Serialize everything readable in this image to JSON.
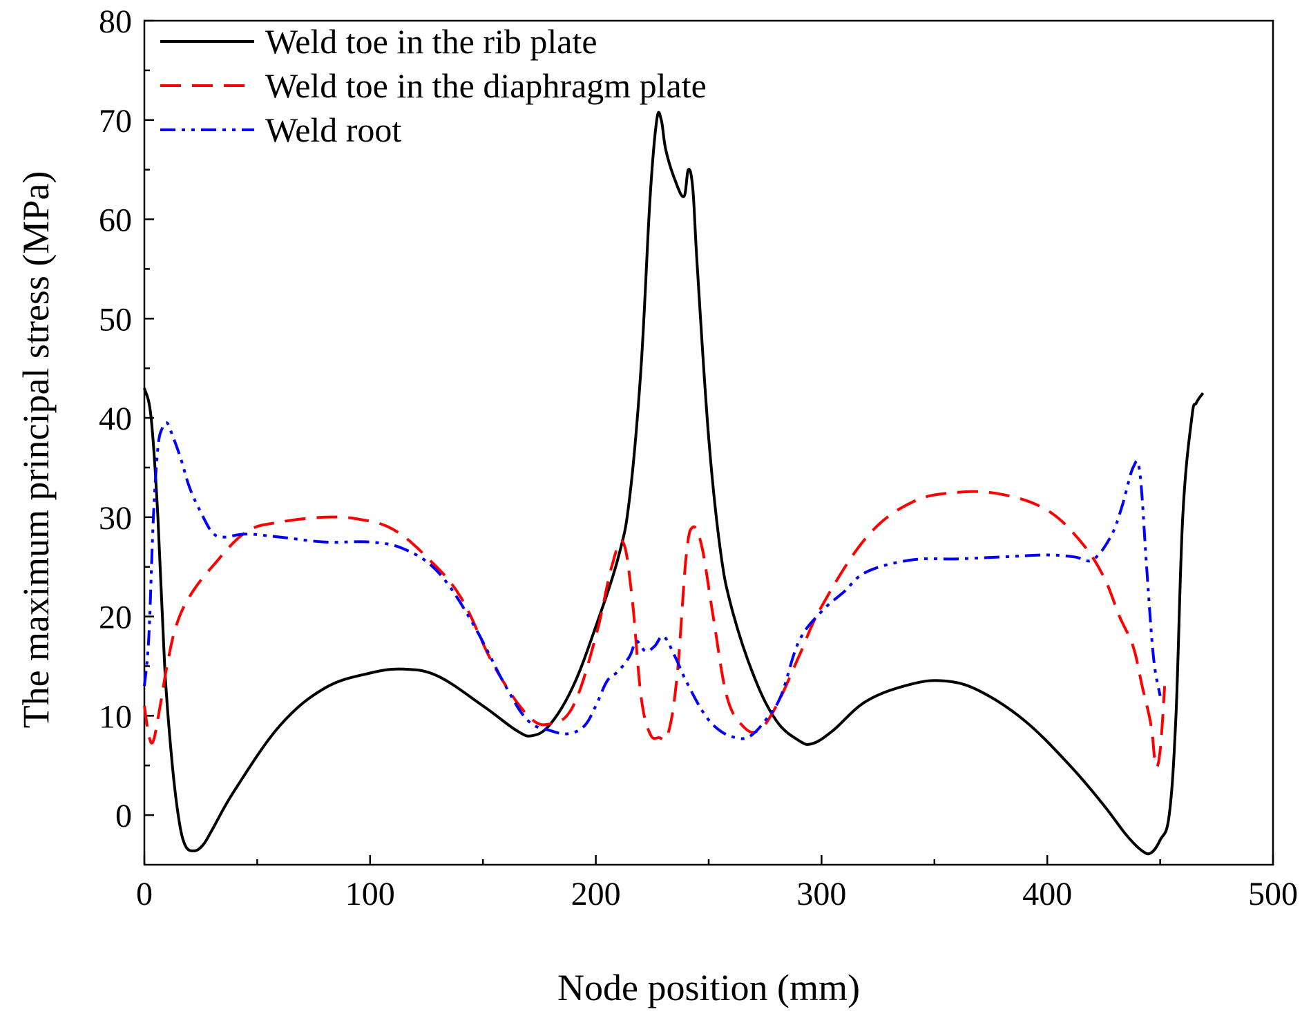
{
  "chart_data": {
    "type": "line",
    "title": "",
    "xlabel": "Node position (mm)",
    "ylabel": "The  maximum principal stress (MPa)",
    "xlim": [
      0,
      500
    ],
    "ylim": [
      -5,
      80
    ],
    "x_ticks": [
      0,
      100,
      200,
      300,
      400,
      500
    ],
    "y_ticks": [
      0,
      10,
      20,
      30,
      40,
      50,
      60,
      70,
      80
    ],
    "x_tick_labels": [
      "0",
      "100",
      "200",
      "300",
      "400",
      "500"
    ],
    "y_tick_labels": [
      "0",
      "10",
      "20",
      "30",
      "40",
      "50",
      "60",
      "70",
      "80"
    ],
    "grid": false,
    "legend_position": "top-left",
    "series": [
      {
        "name": "Weld toe in the rib plate",
        "color": "#000000",
        "dash": "solid",
        "x": [
          0,
          3,
          6,
          9,
          12,
          15,
          18,
          22,
          26,
          30,
          40,
          60,
          80,
          100,
          115,
          130,
          150,
          165,
          172,
          180,
          190,
          200,
          210,
          215,
          220,
          224,
          227,
          229,
          231,
          235,
          239,
          241,
          243,
          245,
          250,
          255,
          260,
          270,
          280,
          290,
          296,
          305,
          320,
          340,
          355,
          370,
          390,
          410,
          425,
          435,
          442,
          446,
          450,
          454,
          457,
          460,
          464,
          466,
          469
        ],
        "y": [
          43,
          40,
          30,
          15,
          6,
          0,
          -3,
          -3.6,
          -3,
          -1.5,
          2.5,
          9,
          12.8,
          14.3,
          14.7,
          14,
          11,
          8.5,
          8,
          9.2,
          13,
          19,
          26,
          32,
          45,
          62,
          70,
          70,
          67,
          64,
          62.3,
          65,
          63,
          55,
          38,
          27,
          21,
          14,
          9.5,
          7.5,
          7.2,
          8.5,
          11.5,
          13.2,
          13.5,
          12.5,
          9.5,
          5,
          1,
          -2,
          -3.6,
          -3.8,
          -2.5,
          0,
          10,
          30,
          40,
          41.5,
          42.5
        ]
      },
      {
        "name": "Weld toe in the diaphragm plate",
        "color": "#ff0000",
        "dash": "dashed",
        "x": [
          0,
          2,
          4,
          7,
          10,
          14,
          20,
          30,
          45,
          60,
          80,
          95,
          110,
          125,
          140,
          155,
          170,
          180,
          190,
          200,
          207,
          212,
          216,
          220,
          224,
          228,
          232,
          236,
          240,
          243,
          247,
          252,
          258,
          265,
          272,
          280,
          290,
          300,
          320,
          340,
          360,
          380,
          400,
          415,
          425,
          432,
          438,
          442,
          446,
          448,
          450,
          452
        ],
        "y": [
          11,
          8,
          7.5,
          11,
          15,
          19,
          22,
          25,
          28.5,
          29.5,
          30,
          29.8,
          28.8,
          26,
          22,
          15,
          10,
          9.2,
          11,
          18,
          25,
          27.5,
          22,
          12,
          8.2,
          7.8,
          8.2,
          14,
          26,
          29,
          27,
          20,
          12,
          9,
          8.5,
          11,
          16,
          21,
          28,
          31.5,
          32.5,
          32.3,
          30.7,
          27.5,
          24,
          20,
          17,
          13,
          9,
          5,
          6.5,
          13
        ]
      },
      {
        "name": "Weld root",
        "color": "#0000ff",
        "dash": "dashdotdot",
        "x": [
          0,
          2,
          4,
          6,
          8,
          10,
          12,
          16,
          20,
          25,
          30,
          35,
          45,
          60,
          80,
          100,
          115,
          130,
          145,
          160,
          170,
          180,
          188,
          195,
          200,
          205,
          210,
          215,
          218,
          222,
          226,
          230,
          235,
          240,
          248,
          255,
          262,
          268,
          275,
          282,
          290,
          300,
          310,
          320,
          340,
          360,
          380,
          400,
          412,
          420,
          428,
          433,
          438,
          441,
          444,
          447,
          450
        ],
        "y": [
          13,
          18,
          30,
          37,
          39,
          39.5,
          38.5,
          36,
          33,
          30.5,
          28.5,
          28,
          28.3,
          28,
          27.5,
          27.5,
          26.8,
          24.5,
          19.5,
          13,
          9.5,
          8.5,
          8.2,
          9,
          11,
          13.5,
          14.5,
          16,
          17.5,
          16.5,
          17,
          18,
          16,
          13.5,
          10.2,
          8.5,
          7.8,
          7.9,
          9.5,
          12,
          17.5,
          20.5,
          22.5,
          24.5,
          25.7,
          25.8,
          26.0,
          26.2,
          26.0,
          25.7,
          28,
          31,
          35,
          34.5,
          25,
          16,
          12
        ]
      }
    ]
  }
}
